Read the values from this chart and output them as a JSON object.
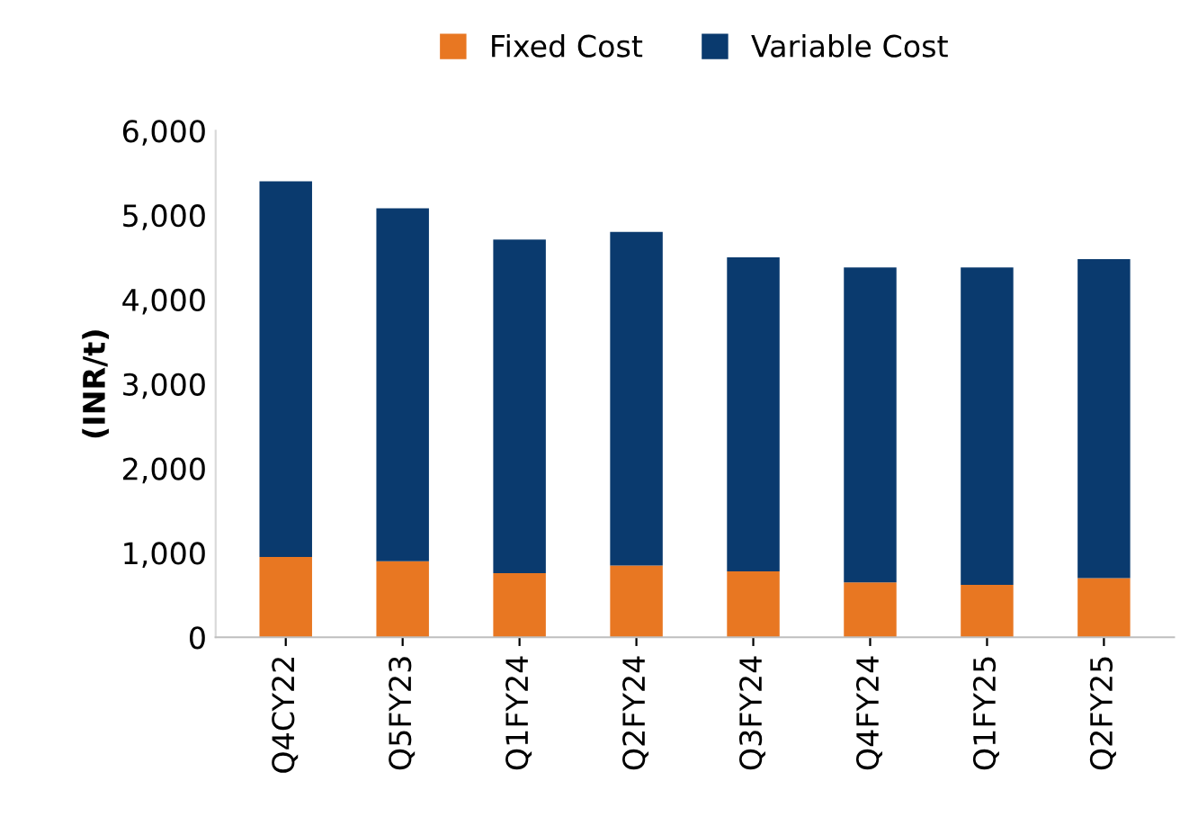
{
  "chart_data": {
    "type": "bar",
    "stacked": true,
    "ylabel": "(INR/t)",
    "categories": [
      "Q4CY22",
      "Q5FY23",
      "Q1FY24",
      "Q2FY24",
      "Q3FY24",
      "Q4FY24",
      "Q1FY25",
      "Q2FY25"
    ],
    "series": [
      {
        "name": "Fixed Cost",
        "color": "#e87722",
        "values": [
          950,
          900,
          760,
          850,
          780,
          650,
          620,
          700
        ]
      },
      {
        "name": "Variable Cost",
        "color": "#0a3a6e",
        "values": [
          4450,
          4180,
          3950,
          3950,
          3720,
          3730,
          3760,
          3780
        ]
      }
    ],
    "ylim": [
      0,
      6000
    ],
    "yticks": [
      {
        "value": 0,
        "label": "0"
      },
      {
        "value": 1000,
        "label": "1,000"
      },
      {
        "value": 2000,
        "label": "2,000"
      },
      {
        "value": 3000,
        "label": "3,000"
      },
      {
        "value": 4000,
        "label": "4,000"
      },
      {
        "value": 5000,
        "label": "5,000"
      },
      {
        "value": 6000,
        "label": "6,000"
      }
    ],
    "grid": false,
    "legend": "top"
  }
}
